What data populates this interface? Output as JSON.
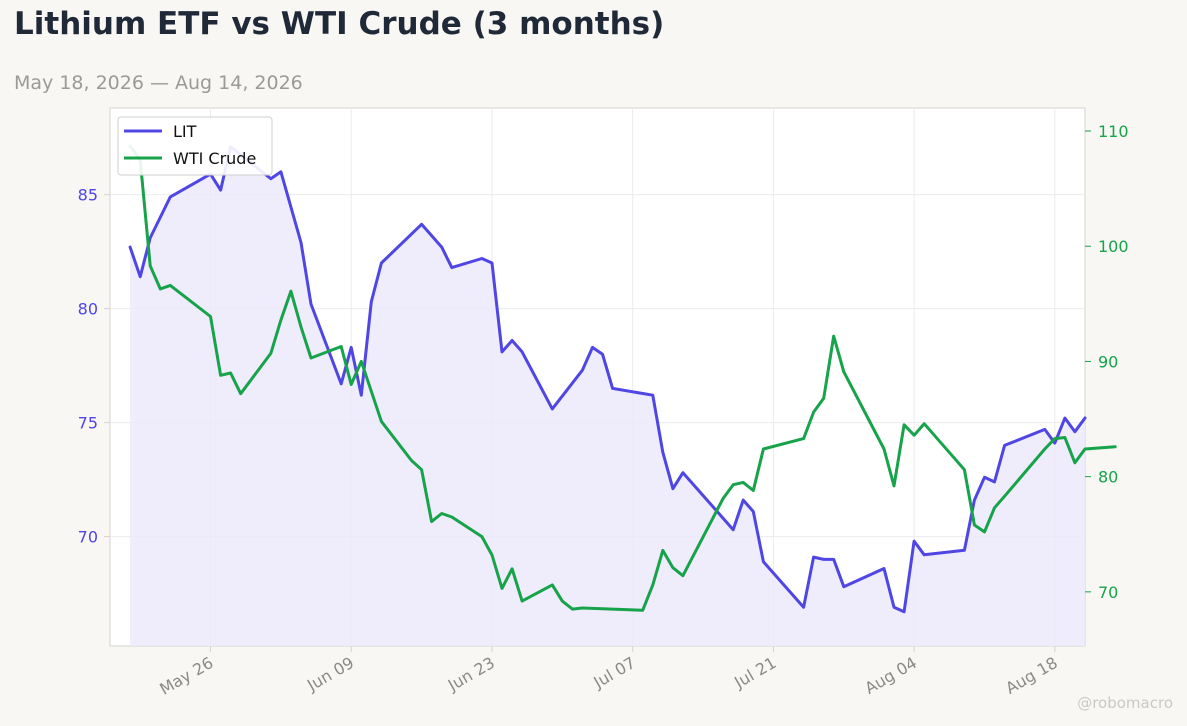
{
  "header": {
    "title": "Lithium ETF vs WTI Crude (3 months)",
    "subtitle": "May 18, 2026 — Aug 14, 2026"
  },
  "watermark": "@robomacro",
  "colors": {
    "lit": "#4f46e5",
    "wti": "#16a34a",
    "lit_fill": "#ece9fb",
    "background": "#f8f7f4",
    "plot_background": "#ffffff",
    "grid": "#ebebeb",
    "axis": "#d5d3cc",
    "x_tick_text": "#8a8a86"
  },
  "chart_data": {
    "type": "line",
    "dual_axis": true,
    "grid": true,
    "legend_position": "top-left",
    "xlim": [
      "2026-05-16",
      "2026-08-21"
    ],
    "x_ticks": [
      "2026-05-26",
      "2026-06-09",
      "2026-06-23",
      "2026-07-07",
      "2026-07-21",
      "2026-08-04",
      "2026-08-18"
    ],
    "x_tick_labels": [
      "May 26",
      "Jun 09",
      "Jun 23",
      "Jul 07",
      "Jul 21",
      "Aug 04",
      "Aug 18"
    ],
    "y_left": {
      "lim": [
        65.2,
        88.8
      ],
      "ticks": [
        70,
        75,
        80,
        85
      ],
      "tick_labels": [
        "70",
        "75",
        "80",
        "85"
      ]
    },
    "y_right": {
      "lim": [
        65.3,
        112.0
      ],
      "ticks": [
        70,
        80,
        90,
        100,
        110
      ],
      "tick_labels": [
        "70",
        "80",
        "90",
        "100",
        "110"
      ]
    },
    "series": [
      {
        "name": "LIT",
        "axis": "left",
        "fill_to_axis_min": true,
        "points": [
          [
            "2026-05-18",
            82.7
          ],
          [
            "2026-05-19",
            81.4
          ],
          [
            "2026-05-20",
            83.1
          ],
          [
            "2026-05-22",
            84.9
          ],
          [
            "2026-05-26",
            85.9
          ],
          [
            "2026-05-27",
            85.2
          ],
          [
            "2026-05-28",
            87.1
          ],
          [
            "2026-06-01",
            85.7
          ],
          [
            "2026-06-02",
            86.0
          ],
          [
            "2026-06-04",
            82.9
          ],
          [
            "2026-06-05",
            80.2
          ],
          [
            "2026-06-08",
            76.7
          ],
          [
            "2026-06-09",
            78.3
          ],
          [
            "2026-06-10",
            76.2
          ],
          [
            "2026-06-11",
            80.3
          ],
          [
            "2026-06-12",
            82.0
          ],
          [
            "2026-06-16",
            83.7
          ],
          [
            "2026-06-18",
            82.7
          ],
          [
            "2026-06-19",
            81.8
          ],
          [
            "2026-06-22",
            82.2
          ],
          [
            "2026-06-23",
            82.0
          ],
          [
            "2026-06-24",
            78.1
          ],
          [
            "2026-06-25",
            78.6
          ],
          [
            "2026-06-26",
            78.1
          ],
          [
            "2026-06-29",
            75.6
          ],
          [
            "2026-07-02",
            77.3
          ],
          [
            "2026-07-03",
            78.3
          ],
          [
            "2026-07-04",
            78.0
          ],
          [
            "2026-07-05",
            76.5
          ],
          [
            "2026-07-09",
            76.2
          ],
          [
            "2026-07-10",
            73.7
          ],
          [
            "2026-07-11",
            72.1
          ],
          [
            "2026-07-12",
            72.8
          ],
          [
            "2026-07-13",
            72.3
          ],
          [
            "2026-07-17",
            70.3
          ],
          [
            "2026-07-18",
            71.6
          ],
          [
            "2026-07-19",
            71.1
          ],
          [
            "2026-07-20",
            68.9
          ],
          [
            "2026-07-24",
            66.9
          ],
          [
            "2026-07-25",
            69.1
          ],
          [
            "2026-07-26",
            69.0
          ],
          [
            "2026-07-27",
            69.0
          ],
          [
            "2026-07-28",
            67.8
          ],
          [
            "2026-08-01",
            68.6
          ],
          [
            "2026-08-02",
            66.9
          ],
          [
            "2026-08-03",
            66.7
          ],
          [
            "2026-08-04",
            69.8
          ],
          [
            "2026-08-05",
            69.2
          ],
          [
            "2026-08-09",
            69.4
          ],
          [
            "2026-08-10",
            71.6
          ],
          [
            "2026-08-11",
            72.6
          ],
          [
            "2026-08-12",
            72.4
          ],
          [
            "2026-08-13",
            74.0
          ],
          [
            "2026-08-17",
            74.7
          ],
          [
            "2026-08-18",
            74.1
          ],
          [
            "2026-08-19",
            75.2
          ],
          [
            "2026-08-20",
            74.6
          ],
          [
            "2026-08-21",
            75.2
          ]
        ]
      },
      {
        "name": "WTI Crude",
        "axis": "right",
        "fill_to_axis_min": false,
        "points": [
          [
            "2026-05-18",
            108.7
          ],
          [
            "2026-05-19",
            107.5
          ],
          [
            "2026-05-20",
            98.3
          ],
          [
            "2026-05-21",
            96.3
          ],
          [
            "2026-05-22",
            96.6
          ],
          [
            "2026-05-26",
            93.9
          ],
          [
            "2026-05-27",
            88.8
          ],
          [
            "2026-05-28",
            89.0
          ],
          [
            "2026-05-29",
            87.2
          ],
          [
            "2026-06-01",
            90.7
          ],
          [
            "2026-06-02",
            93.6
          ],
          [
            "2026-06-03",
            96.1
          ],
          [
            "2026-06-04",
            93.0
          ],
          [
            "2026-06-05",
            90.3
          ],
          [
            "2026-06-08",
            91.3
          ],
          [
            "2026-06-09",
            88.0
          ],
          [
            "2026-06-10",
            90.0
          ],
          [
            "2026-06-12",
            84.8
          ],
          [
            "2026-06-15",
            81.4
          ],
          [
            "2026-06-16",
            80.6
          ],
          [
            "2026-06-17",
            76.1
          ],
          [
            "2026-06-18",
            76.8
          ],
          [
            "2026-06-19",
            76.5
          ],
          [
            "2026-06-22",
            74.8
          ],
          [
            "2026-06-23",
            73.2
          ],
          [
            "2026-06-24",
            70.3
          ],
          [
            "2026-06-25",
            72.0
          ],
          [
            "2026-06-26",
            69.2
          ],
          [
            "2026-06-29",
            70.6
          ],
          [
            "2026-06-30",
            69.2
          ],
          [
            "2026-07-01",
            68.5
          ],
          [
            "2026-07-02",
            68.6
          ],
          [
            "2026-07-08",
            68.4
          ],
          [
            "2026-07-09",
            70.6
          ],
          [
            "2026-07-10",
            73.6
          ],
          [
            "2026-07-11",
            72.1
          ],
          [
            "2026-07-12",
            71.4
          ],
          [
            "2026-07-16",
            78.1
          ],
          [
            "2026-07-17",
            79.3
          ],
          [
            "2026-07-18",
            79.5
          ],
          [
            "2026-07-19",
            78.8
          ],
          [
            "2026-07-20",
            82.4
          ],
          [
            "2026-07-24",
            83.3
          ],
          [
            "2026-07-25",
            85.6
          ],
          [
            "2026-07-26",
            86.8
          ],
          [
            "2026-07-27",
            92.2
          ],
          [
            "2026-07-28",
            89.1
          ],
          [
            "2026-08-01",
            82.4
          ],
          [
            "2026-08-02",
            79.2
          ],
          [
            "2026-08-03",
            84.5
          ],
          [
            "2026-08-04",
            83.6
          ],
          [
            "2026-08-05",
            84.6
          ],
          [
            "2026-08-09",
            80.6
          ],
          [
            "2026-08-10",
            75.8
          ],
          [
            "2026-08-11",
            75.2
          ],
          [
            "2026-08-12",
            77.3
          ],
          [
            "2026-08-13",
            78.3
          ],
          [
            "2026-08-17",
            82.4
          ],
          [
            "2026-08-18",
            83.3
          ],
          [
            "2026-08-19",
            83.4
          ],
          [
            "2026-08-20",
            81.2
          ],
          [
            "2026-08-21",
            82.4
          ],
          [
            "2026-08-24",
            82.6
          ]
        ]
      }
    ]
  }
}
